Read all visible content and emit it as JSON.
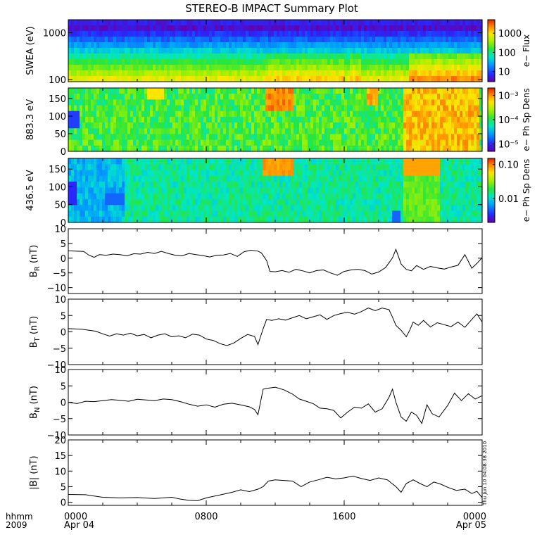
{
  "title": "STEREO-B IMPACT Summary Plot",
  "footer": {
    "row_label": "hhmm",
    "year": "2009",
    "timestamp": "Thu Jun 10 04:08:38 2010"
  },
  "chart_data": {
    "type": "line",
    "x_unit": "hours since 2009 Apr 04 0000",
    "xlim": [
      0,
      24
    ],
    "x_ticks": [
      {
        "value": 0,
        "label": "0000",
        "sublabel": "Apr 04"
      },
      {
        "value": 8,
        "label": "0800",
        "sublabel": ""
      },
      {
        "value": 16,
        "label": "1600",
        "sublabel": ""
      },
      {
        "value": 24,
        "label": "0000",
        "sublabel": "Apr 05"
      }
    ],
    "spectrograms": [
      {
        "id": "swea",
        "ylabel": "SWEA (eV)",
        "y_scale": "log",
        "ylim": [
          90,
          1900
        ],
        "y_ticks": [
          {
            "value": 100,
            "label": "100"
          },
          {
            "value": 1000,
            "label": "1000"
          }
        ],
        "colorbar_label": "e− Flux",
        "colorbar_scale": "log",
        "colorbar_ticks": [
          {
            "value": 10,
            "label": "10"
          },
          {
            "value": 100,
            "label": "100"
          },
          {
            "value": 1000,
            "label": "1000"
          }
        ],
        "colorbar_range": [
          3,
          5000
        ]
      },
      {
        "id": "pad_883",
        "ylabel": "883.3 eV",
        "y_scale": "linear",
        "ylim": [
          0,
          180
        ],
        "y_ticks": [
          {
            "value": 0,
            "label": "0"
          },
          {
            "value": 50,
            "label": "50"
          },
          {
            "value": 100,
            "label": "100"
          },
          {
            "value": 150,
            "label": "150"
          }
        ],
        "colorbar_label": "e− Ph Sp Dens",
        "colorbar_scale": "log",
        "colorbar_ticks": [
          {
            "value": 1e-05,
            "label": "10⁻⁵"
          },
          {
            "value": 0.0001,
            "label": "10⁻⁴"
          },
          {
            "value": 0.001,
            "label": "10⁻³"
          }
        ],
        "colorbar_range": [
          5e-06,
          0.002
        ]
      },
      {
        "id": "pad_436",
        "ylabel": "436.5 eV",
        "y_scale": "linear",
        "ylim": [
          0,
          180
        ],
        "y_ticks": [
          {
            "value": 0,
            "label": "0"
          },
          {
            "value": 50,
            "label": "50"
          },
          {
            "value": 100,
            "label": "100"
          },
          {
            "value": 150,
            "label": "150"
          }
        ],
        "colorbar_label": "e− Ph Sp Dens",
        "colorbar_scale": "log",
        "colorbar_ticks": [
          {
            "value": 0.01,
            "label": "0.01"
          },
          {
            "value": 0.1,
            "label": "0.10"
          }
        ],
        "colorbar_range": [
          0.002,
          0.15
        ]
      }
    ],
    "line_panels": [
      {
        "id": "br",
        "ylabel_main": "B",
        "ylabel_sub": "R",
        "ylabel_unit": " (nT)",
        "ylim": [
          -12,
          10
        ],
        "y_ticks": [
          {
            "value": 10,
            "label": "10"
          },
          {
            "value": 5,
            "label": "5"
          },
          {
            "value": 0,
            "label": "0"
          },
          {
            "value": -5,
            "label": "−5"
          },
          {
            "value": -10,
            "label": "−10"
          }
        ],
        "x": [
          0.0,
          0.9,
          1.2,
          1.5,
          1.8,
          2.2,
          2.6,
          3.0,
          3.4,
          3.8,
          4.2,
          4.6,
          5.0,
          5.4,
          5.8,
          6.2,
          6.6,
          7.0,
          7.4,
          7.8,
          8.2,
          8.6,
          9.0,
          9.4,
          9.8,
          10.2,
          10.6,
          11.0,
          11.2,
          11.5,
          11.7,
          12.0,
          12.4,
          12.8,
          13.2,
          13.6,
          14.0,
          14.4,
          14.8,
          15.2,
          15.6,
          16.0,
          16.4,
          16.8,
          17.2,
          17.6,
          18.0,
          18.4,
          18.8,
          19.0,
          19.3,
          19.6,
          19.9,
          20.2,
          20.6,
          21.0,
          21.4,
          21.8,
          22.2,
          22.6,
          23.0,
          23.4,
          23.7,
          24.0
        ],
        "values": [
          2.5,
          2.3,
          1.0,
          0.3,
          1.2,
          1.0,
          1.4,
          1.2,
          0.8,
          1.5,
          1.4,
          2.0,
          1.6,
          2.3,
          1.6,
          1.0,
          0.8,
          1.6,
          1.2,
          0.9,
          0.4,
          1.0,
          1.1,
          1.6,
          0.6,
          2.2,
          2.7,
          2.4,
          1.8,
          -0.8,
          -4.5,
          -4.6,
          -4.2,
          -4.8,
          -3.8,
          -4.3,
          -5.0,
          -4.2,
          -4.0,
          -5.0,
          -5.8,
          -4.5,
          -4.0,
          -3.8,
          -4.2,
          -5.4,
          -4.7,
          -3.2,
          0.1,
          3.0,
          -2.0,
          -3.8,
          -4.3,
          -2.5,
          -3.8,
          -2.8,
          -3.3,
          -3.7,
          -3.0,
          -2.4,
          1.2,
          -3.4,
          -1.8,
          0.2
        ]
      },
      {
        "id": "bt",
        "ylabel_main": "B",
        "ylabel_sub": "T",
        "ylabel_unit": " (nT)",
        "ylim": [
          -10,
          10
        ],
        "y_ticks": [
          {
            "value": 10,
            "label": "10"
          },
          {
            "value": 5,
            "label": "5"
          },
          {
            "value": 0,
            "label": "0"
          },
          {
            "value": -5,
            "label": "−5"
          },
          {
            "value": -10,
            "label": "−10"
          }
        ],
        "x": [
          0.0,
          0.8,
          1.2,
          1.6,
          2.0,
          2.4,
          2.8,
          3.2,
          3.6,
          4.0,
          4.4,
          4.8,
          5.2,
          5.6,
          6.0,
          6.4,
          6.8,
          7.2,
          7.6,
          8.0,
          8.4,
          8.8,
          9.2,
          9.6,
          10.0,
          10.4,
          10.8,
          11.0,
          11.3,
          11.5,
          11.8,
          12.2,
          12.6,
          13.0,
          13.4,
          13.8,
          14.2,
          14.6,
          15.0,
          15.4,
          15.8,
          16.2,
          16.6,
          17.0,
          17.4,
          17.8,
          18.2,
          18.6,
          18.8,
          19.0,
          19.3,
          19.6,
          19.8,
          20.0,
          20.3,
          20.6,
          21.0,
          21.4,
          21.8,
          22.2,
          22.6,
          23.0,
          23.4,
          23.7,
          24.0
        ],
        "values": [
          1.0,
          0.8,
          0.5,
          0.2,
          -0.6,
          -1.3,
          -0.6,
          -1.0,
          -0.4,
          -1.2,
          -0.8,
          -1.8,
          -1.0,
          -0.6,
          -1.5,
          -1.2,
          -1.8,
          -0.7,
          -1.0,
          -2.2,
          -2.6,
          -3.6,
          -4.2,
          -3.4,
          -2.0,
          -0.8,
          -1.4,
          -3.9,
          1.0,
          3.8,
          3.5,
          4.0,
          3.6,
          4.3,
          5.0,
          4.0,
          4.6,
          5.2,
          3.8,
          5.0,
          5.6,
          6.0,
          5.4,
          6.2,
          7.3,
          6.5,
          7.3,
          6.8,
          4.5,
          2.0,
          0.5,
          -1.5,
          0.5,
          3.0,
          2.0,
          3.5,
          1.5,
          2.8,
          2.2,
          1.6,
          3.0,
          1.4,
          3.8,
          5.5,
          3.0
        ]
      },
      {
        "id": "bn",
        "ylabel_main": "B",
        "ylabel_sub": "N",
        "ylabel_unit": " (nT)",
        "ylim": [
          -10,
          10
        ],
        "y_ticks": [
          {
            "value": 10,
            "label": "10"
          },
          {
            "value": 5,
            "label": "5"
          },
          {
            "value": 0,
            "label": "0"
          },
          {
            "value": -5,
            "label": "−5"
          },
          {
            "value": -10,
            "label": "−10"
          }
        ],
        "x": [
          0.0,
          0.5,
          1.0,
          1.5,
          2.0,
          2.5,
          3.0,
          3.5,
          4.0,
          4.5,
          5.0,
          5.5,
          6.0,
          6.5,
          7.0,
          7.5,
          8.0,
          8.5,
          9.0,
          9.5,
          10.0,
          10.5,
          10.8,
          11.0,
          11.3,
          11.6,
          12.0,
          12.5,
          13.0,
          13.4,
          13.8,
          14.2,
          14.6,
          15.0,
          15.4,
          15.8,
          16.2,
          16.6,
          17.0,
          17.4,
          17.8,
          18.2,
          18.6,
          18.8,
          19.0,
          19.3,
          19.6,
          19.9,
          20.2,
          20.5,
          20.8,
          21.1,
          21.5,
          22.0,
          22.4,
          22.8,
          23.2,
          23.6,
          24.0
        ],
        "values": [
          0.0,
          -0.4,
          0.3,
          0.2,
          0.5,
          0.8,
          0.6,
          0.3,
          0.9,
          0.7,
          0.5,
          1.0,
          0.8,
          0.2,
          -0.6,
          -1.2,
          -0.8,
          -1.5,
          -0.6,
          -0.3,
          -0.8,
          -1.4,
          -2.2,
          -3.8,
          4.0,
          4.3,
          4.6,
          3.8,
          2.5,
          1.0,
          0.3,
          -0.4,
          -1.8,
          -2.0,
          -2.5,
          -4.8,
          -3.0,
          -1.5,
          -1.8,
          -0.5,
          -3.0,
          -2.0,
          1.5,
          4.0,
          0.0,
          -4.5,
          -5.8,
          -3.0,
          -4.0,
          -6.5,
          -0.8,
          -3.5,
          -4.5,
          -1.0,
          2.8,
          0.5,
          2.6,
          1.0,
          2.0
        ]
      },
      {
        "id": "bmag",
        "ylabel_main": "|B|",
        "ylabel_sub": "",
        "ylabel_unit": " (nT)",
        "ylim": [
          -1,
          20
        ],
        "y_ticks": [
          {
            "value": 20,
            "label": "20"
          },
          {
            "value": 15,
            "label": "15"
          },
          {
            "value": 10,
            "label": "10"
          },
          {
            "value": 5,
            "label": "5"
          },
          {
            "value": 0,
            "label": "0"
          }
        ],
        "x": [
          0.0,
          1.0,
          2.0,
          3.0,
          4.0,
          5.0,
          6.0,
          6.5,
          7.0,
          7.5,
          8.0,
          8.5,
          9.0,
          9.5,
          10.0,
          10.5,
          11.0,
          11.3,
          11.6,
          12.0,
          12.5,
          13.0,
          13.5,
          14.0,
          14.5,
          15.0,
          15.5,
          16.0,
          16.5,
          17.0,
          17.5,
          18.0,
          18.5,
          19.0,
          19.3,
          19.6,
          20.0,
          20.4,
          20.8,
          21.2,
          21.6,
          22.0,
          22.5,
          23.0,
          23.4,
          23.7,
          24.0
        ],
        "values": [
          2.5,
          2.4,
          1.6,
          1.4,
          1.5,
          1.2,
          1.6,
          1.0,
          0.6,
          0.5,
          1.4,
          2.0,
          2.6,
          3.2,
          4.0,
          3.4,
          4.2,
          5.0,
          6.8,
          7.2,
          7.0,
          6.8,
          5.0,
          6.5,
          7.2,
          8.0,
          7.5,
          7.8,
          8.4,
          7.6,
          7.0,
          7.8,
          7.2,
          5.0,
          3.2,
          6.0,
          7.2,
          6.0,
          5.0,
          6.5,
          5.8,
          4.8,
          3.8,
          4.2,
          2.8,
          3.5,
          1.5
        ]
      }
    ]
  }
}
